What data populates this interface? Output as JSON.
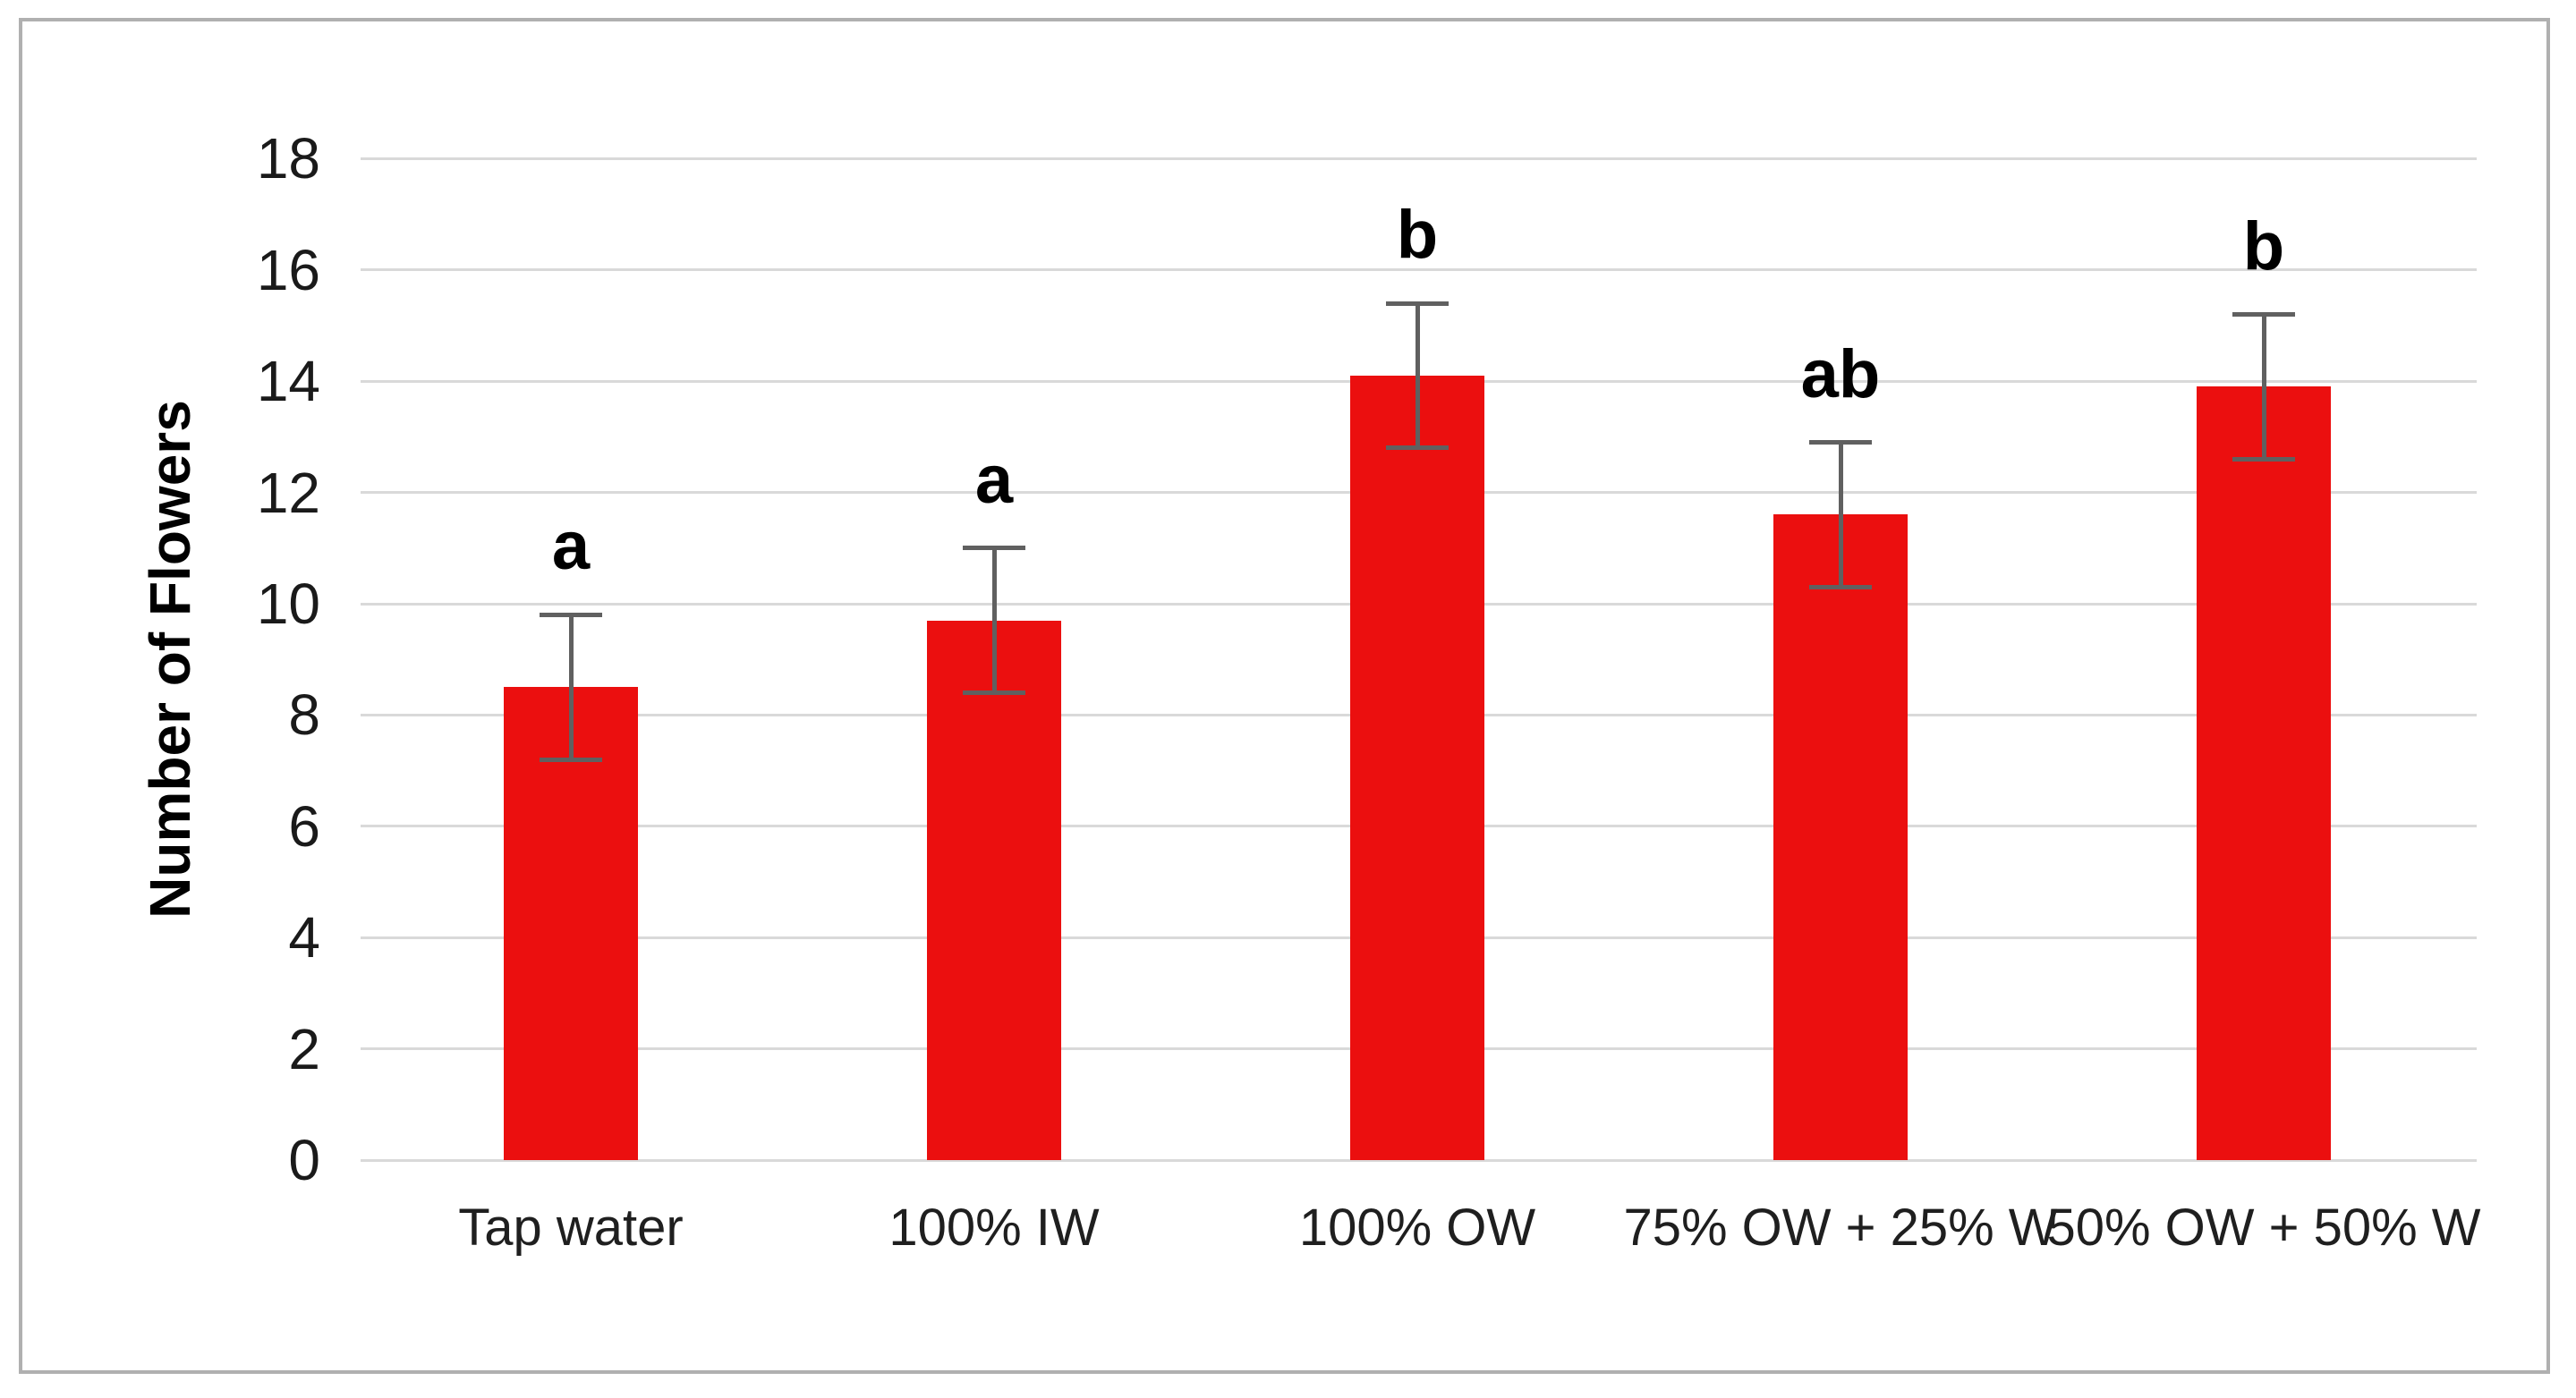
{
  "figure": {
    "background": "#ffffff",
    "border_color": "#b0b0b0"
  },
  "chart_data": {
    "type": "bar",
    "title": "",
    "xlabel": "",
    "ylabel": "Number of Flowers",
    "ylim": [
      0,
      18
    ],
    "yticks": [
      0,
      2,
      4,
      6,
      8,
      10,
      12,
      14,
      16,
      18
    ],
    "grid": true,
    "legend": "none",
    "categories": [
      "Tap water",
      "100% IW",
      "100% OW",
      "75% OW + 25% W",
      "50% OW + 50% W"
    ],
    "series": [
      {
        "name": "Number of Flowers",
        "values": [
          8.5,
          9.7,
          14.1,
          11.6,
          13.9
        ],
        "error_bars": [
          1.3,
          1.3,
          1.3,
          1.3,
          1.3
        ],
        "significance_letters": [
          "a",
          "a",
          "b",
          "ab",
          "b"
        ]
      }
    ],
    "bar_color": "#eb0f0f",
    "error_bar_color": "#606060",
    "gridline_color": "#d9d9d9",
    "tick_label_color": "#1a1a1a"
  }
}
